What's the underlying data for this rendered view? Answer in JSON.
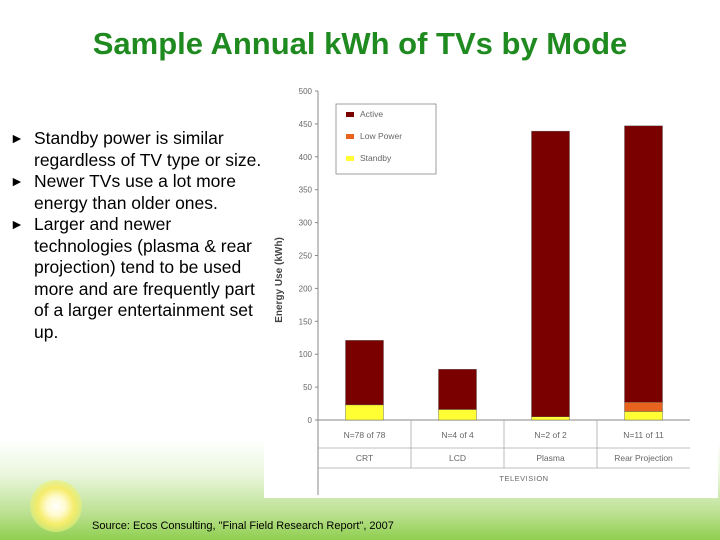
{
  "title": "Sample Annual kWh of TVs by Mode",
  "bullets": [
    "Standby power is similar regardless of TV type or size.",
    "Newer TVs use a lot more energy than older ones.",
    "Larger and newer technologies (plasma & rear projection) tend to be used more and are frequently part of a larger entertainment set up."
  ],
  "source": "Source: Ecos Consulting, \"Final Field Research Report\", 2007",
  "colors": {
    "title": "#1f8a1f",
    "active": "#7a0000",
    "low_power": "#e8641e",
    "standby": "#ffff33"
  },
  "chart_data": {
    "type": "bar",
    "stacked": true,
    "ylabel": "Energy Use (kWh)",
    "xlabel": "TELEVISION",
    "ylim": [
      0,
      500
    ],
    "yticks": [
      0,
      50,
      100,
      150,
      200,
      250,
      300,
      350,
      400,
      450,
      500
    ],
    "categories": [
      "CRT",
      "LCD",
      "Plasma",
      "Rear Projection"
    ],
    "sample_sizes": [
      "N=78 of 78",
      "N=4 of 4",
      "N=2 of 2",
      "N=11 of 11"
    ],
    "series": [
      {
        "name": "Standby",
        "values": [
          23,
          16,
          5,
          13
        ]
      },
      {
        "name": "Low Power",
        "values": [
          0,
          0,
          0,
          14
        ]
      },
      {
        "name": "Active",
        "values": [
          98,
          61,
          434,
          420
        ]
      }
    ],
    "legend": [
      "Active",
      "Low Power",
      "Standby"
    ],
    "legend_position": "top-left",
    "grid": false
  }
}
